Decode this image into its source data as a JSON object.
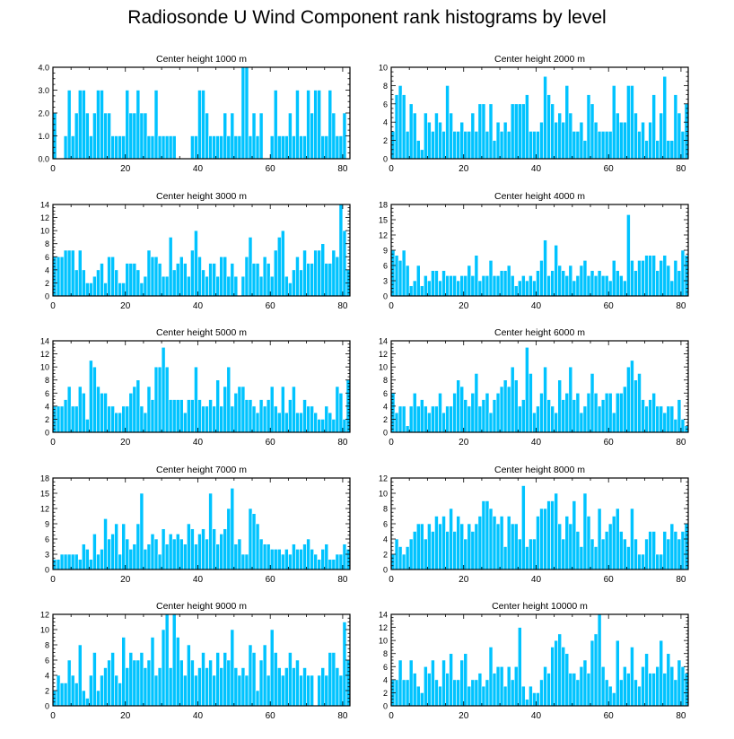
{
  "title": "Radiosonde U Wind Component rank histograms by level",
  "colors": {
    "bar": "#00c3ff",
    "bar_edge": "#ffffff",
    "axis": "#000000"
  },
  "chart_data": [
    {
      "type": "bar",
      "title": "Center height 1000 m",
      "xlim": [
        0,
        82
      ],
      "ylim": [
        0,
        4
      ],
      "xticks": [
        0,
        20,
        40,
        60,
        80
      ],
      "xtick_labels": [
        "0",
        "20",
        "40",
        "60",
        "80"
      ],
      "yticks": [
        0,
        1,
        2,
        3,
        4
      ],
      "ytick_labels": [
        "0.0",
        "1.0",
        "2.0",
        "3.0",
        "4.0"
      ],
      "values": [
        2,
        0,
        0,
        1,
        3,
        1,
        2,
        3,
        3,
        2,
        1,
        2,
        3,
        3,
        2,
        2,
        1,
        1,
        1,
        1,
        3,
        2,
        2,
        3,
        2,
        2,
        1,
        1,
        3,
        1,
        1,
        1,
        1,
        1,
        0,
        0,
        0,
        0,
        1,
        1,
        3,
        3,
        2,
        1,
        1,
        1,
        1,
        2,
        1,
        2,
        1,
        1,
        4,
        4,
        1,
        2,
        1,
        2,
        0,
        0,
        1,
        3,
        1,
        1,
        1,
        2,
        1,
        3,
        1,
        1,
        3,
        2,
        3,
        3,
        1,
        1,
        3,
        2,
        1,
        1,
        2,
        0
      ]
    },
    {
      "type": "bar",
      "title": "Center height 2000 m",
      "xlim": [
        0,
        82
      ],
      "ylim": [
        0,
        10
      ],
      "xticks": [
        0,
        20,
        40,
        60,
        80
      ],
      "xtick_labels": [
        "0",
        "20",
        "40",
        "60",
        "80"
      ],
      "yticks": [
        0,
        2,
        4,
        6,
        8,
        10
      ],
      "ytick_labels": [
        "0",
        "2",
        "4",
        "6",
        "8",
        "10"
      ],
      "values": [
        3,
        7,
        8,
        7,
        3,
        6,
        5,
        2,
        1,
        5,
        4,
        3,
        5,
        4,
        3,
        8,
        5,
        3,
        3,
        4,
        3,
        3,
        5,
        3,
        6,
        6,
        3,
        6,
        2,
        4,
        3,
        4,
        3,
        6,
        6,
        6,
        6,
        7,
        3,
        3,
        3,
        4,
        9,
        7,
        6,
        4,
        5,
        4,
        8,
        5,
        3,
        3,
        4,
        2,
        7,
        6,
        4,
        3,
        3,
        3,
        3,
        8,
        5,
        4,
        4,
        8,
        8,
        5,
        3,
        4,
        2,
        4,
        7,
        2,
        5,
        9,
        2,
        2,
        7,
        5,
        3,
        6
      ]
    },
    {
      "type": "bar",
      "title": "Center height 3000 m",
      "xlim": [
        0,
        82
      ],
      "ylim": [
        0,
        14
      ],
      "xticks": [
        0,
        20,
        40,
        60,
        80
      ],
      "xtick_labels": [
        "0",
        "20",
        "40",
        "60",
        "80"
      ],
      "yticks": [
        0,
        2,
        4,
        6,
        8,
        10,
        12,
        14
      ],
      "ytick_labels": [
        "0",
        "2",
        "4",
        "6",
        "8",
        "10",
        "12",
        "14"
      ],
      "values": [
        6,
        6,
        6,
        7,
        7,
        7,
        4,
        7,
        4,
        2,
        2,
        3,
        4,
        5,
        2,
        6,
        6,
        4,
        2,
        2,
        5,
        5,
        5,
        4,
        2,
        3,
        7,
        6,
        6,
        5,
        3,
        3,
        9,
        4,
        5,
        6,
        5,
        3,
        7,
        10,
        6,
        4,
        3,
        5,
        5,
        3,
        6,
        6,
        3,
        5,
        3,
        0,
        3,
        6,
        9,
        5,
        5,
        3,
        6,
        5,
        3,
        7,
        9,
        10,
        3,
        2,
        4,
        6,
        4,
        7,
        5,
        5,
        7,
        7,
        8,
        5,
        5,
        7,
        6,
        14,
        10,
        4
      ]
    },
    {
      "type": "bar",
      "title": "Center height 4000 m",
      "xlim": [
        0,
        82
      ],
      "ylim": [
        0,
        18
      ],
      "xticks": [
        0,
        20,
        40,
        60,
        80
      ],
      "xtick_labels": [
        "0",
        "20",
        "40",
        "60",
        "80"
      ],
      "yticks": [
        0,
        3,
        6,
        9,
        12,
        15,
        18
      ],
      "ytick_labels": [
        "0",
        "3",
        "6",
        "9",
        "12",
        "15",
        "18"
      ],
      "values": [
        9,
        8,
        7,
        9,
        6,
        2,
        3,
        6,
        2,
        4,
        3,
        5,
        5,
        3,
        5,
        4,
        4,
        4,
        3,
        4,
        4,
        6,
        4,
        8,
        3,
        4,
        4,
        7,
        4,
        4,
        5,
        5,
        6,
        4,
        2,
        3,
        4,
        3,
        4,
        3,
        5,
        7,
        11,
        4,
        5,
        10,
        6,
        5,
        4,
        6,
        3,
        4,
        6,
        7,
        4,
        5,
        4,
        5,
        4,
        4,
        3,
        7,
        5,
        4,
        3,
        16,
        7,
        5,
        7,
        7,
        8,
        8,
        8,
        5,
        7,
        8,
        6,
        3,
        7,
        5,
        9,
        8
      ]
    },
    {
      "type": "bar",
      "title": "Center height 5000 m",
      "xlim": [
        0,
        82
      ],
      "ylim": [
        0,
        14
      ],
      "xticks": [
        0,
        20,
        40,
        60,
        80
      ],
      "xtick_labels": [
        "0",
        "20",
        "40",
        "60",
        "80"
      ],
      "yticks": [
        0,
        2,
        4,
        6,
        8,
        10,
        12,
        14
      ],
      "ytick_labels": [
        "0",
        "2",
        "4",
        "6",
        "8",
        "10",
        "12",
        "14"
      ],
      "values": [
        4,
        4,
        4,
        5,
        7,
        4,
        4,
        7,
        6,
        2,
        11,
        10,
        7,
        6,
        6,
        4,
        4,
        3,
        3,
        4,
        4,
        6,
        7,
        8,
        4,
        3,
        7,
        5,
        10,
        10,
        13,
        10,
        5,
        5,
        5,
        5,
        3,
        5,
        5,
        10,
        5,
        4,
        4,
        5,
        4,
        8,
        4,
        7,
        10,
        4,
        6,
        7,
        7,
        5,
        5,
        4,
        3,
        5,
        4,
        5,
        7,
        4,
        3,
        7,
        3,
        5,
        7,
        3,
        3,
        5,
        4,
        4,
        3,
        2,
        2,
        4,
        3,
        2,
        7,
        6,
        2,
        8
      ]
    },
    {
      "type": "bar",
      "title": "Center height 6000 m",
      "xlim": [
        0,
        82
      ],
      "ylim": [
        0,
        14
      ],
      "xticks": [
        0,
        20,
        40,
        60,
        80
      ],
      "xtick_labels": [
        "0",
        "20",
        "40",
        "60",
        "80"
      ],
      "yticks": [
        0,
        2,
        4,
        6,
        8,
        10,
        12,
        14
      ],
      "ytick_labels": [
        "0",
        "2",
        "4",
        "6",
        "8",
        "10",
        "12",
        "14"
      ],
      "values": [
        6,
        3,
        4,
        4,
        1,
        4,
        6,
        4,
        5,
        4,
        3,
        4,
        4,
        6,
        3,
        4,
        4,
        6,
        8,
        7,
        5,
        4,
        6,
        9,
        4,
        5,
        6,
        3,
        5,
        6,
        7,
        8,
        7,
        10,
        8,
        4,
        5,
        13,
        9,
        3,
        4,
        6,
        10,
        5,
        4,
        3,
        8,
        5,
        6,
        10,
        5,
        6,
        3,
        4,
        6,
        9,
        6,
        4,
        5,
        6,
        6,
        3,
        6,
        6,
        7,
        10,
        11,
        8,
        9,
        5,
        4,
        5,
        6,
        4,
        4,
        3,
        4,
        4,
        2,
        5,
        2,
        1
      ]
    },
    {
      "type": "bar",
      "title": "Center height 7000 m",
      "xlim": [
        0,
        82
      ],
      "ylim": [
        0,
        18
      ],
      "xticks": [
        0,
        20,
        40,
        60,
        80
      ],
      "xtick_labels": [
        "0",
        "20",
        "40",
        "60",
        "80"
      ],
      "yticks": [
        0,
        3,
        6,
        9,
        12,
        15,
        18
      ],
      "ytick_labels": [
        "0",
        "3",
        "6",
        "9",
        "12",
        "15",
        "18"
      ],
      "values": [
        2,
        2,
        3,
        3,
        3,
        3,
        3,
        2,
        5,
        4,
        2,
        7,
        3,
        4,
        10,
        6,
        7,
        9,
        3,
        9,
        6,
        4,
        5,
        9,
        15,
        4,
        5,
        7,
        6,
        3,
        8,
        5,
        7,
        6,
        7,
        6,
        5,
        9,
        8,
        5,
        7,
        8,
        6,
        15,
        8,
        5,
        7,
        8,
        12,
        16,
        5,
        6,
        3,
        3,
        12,
        11,
        9,
        6,
        5,
        5,
        4,
        4,
        4,
        3,
        4,
        3,
        5,
        4,
        4,
        5,
        6,
        4,
        3,
        2,
        4,
        5,
        2,
        2,
        3,
        3,
        5,
        4
      ]
    },
    {
      "type": "bar",
      "title": "Center height 8000 m",
      "xlim": [
        0,
        82
      ],
      "ylim": [
        0,
        12
      ],
      "xticks": [
        0,
        20,
        40,
        60,
        80
      ],
      "xtick_labels": [
        "0",
        "20",
        "40",
        "60",
        "80"
      ],
      "yticks": [
        0,
        2,
        4,
        6,
        8,
        10,
        12
      ],
      "ytick_labels": [
        "0",
        "2",
        "4",
        "6",
        "8",
        "10",
        "12"
      ],
      "values": [
        2,
        4,
        3,
        2,
        3,
        4,
        5,
        6,
        6,
        4,
        6,
        5,
        7,
        6,
        7,
        5,
        8,
        5,
        7,
        6,
        4,
        6,
        5,
        6,
        7,
        9,
        9,
        8,
        7,
        6,
        7,
        3,
        7,
        6,
        6,
        4,
        11,
        3,
        4,
        4,
        7,
        8,
        8,
        9,
        9,
        10,
        6,
        4,
        7,
        6,
        9,
        5,
        3,
        10,
        7,
        4,
        3,
        8,
        4,
        5,
        6,
        7,
        8,
        5,
        4,
        3,
        8,
        4,
        2,
        2,
        4,
        5,
        5,
        2,
        2,
        5,
        4,
        6,
        5,
        4,
        5,
        6
      ]
    },
    {
      "type": "bar",
      "title": "Center height 9000 m",
      "xlim": [
        0,
        82
      ],
      "ylim": [
        0,
        12
      ],
      "xticks": [
        0,
        20,
        40,
        60,
        80
      ],
      "xtick_labels": [
        "0",
        "20",
        "40",
        "60",
        "80"
      ],
      "yticks": [
        0,
        2,
        4,
        6,
        8,
        10,
        12
      ],
      "ytick_labels": [
        "0",
        "2",
        "4",
        "6",
        "8",
        "10",
        "12"
      ],
      "values": [
        2,
        4,
        3,
        3,
        6,
        4,
        3,
        8,
        2,
        1,
        4,
        7,
        2,
        4,
        5,
        6,
        7,
        4,
        3,
        9,
        5,
        7,
        6,
        6,
        7,
        5,
        6,
        9,
        4,
        5,
        10,
        12,
        5,
        12,
        9,
        6,
        4,
        8,
        6,
        4,
        5,
        7,
        5,
        6,
        4,
        7,
        5,
        7,
        6,
        10,
        5,
        4,
        5,
        4,
        8,
        7,
        2,
        6,
        8,
        4,
        10,
        7,
        5,
        4,
        5,
        7,
        5,
        6,
        4,
        5,
        4,
        4,
        0,
        4,
        5,
        4,
        7,
        7,
        5,
        4,
        11,
        6
      ]
    },
    {
      "type": "bar",
      "title": "Center height 10000 m",
      "xlim": [
        0,
        82
      ],
      "ylim": [
        0,
        14
      ],
      "xticks": [
        0,
        20,
        40,
        60,
        80
      ],
      "xtick_labels": [
        "0",
        "20",
        "40",
        "60",
        "80"
      ],
      "yticks": [
        0,
        2,
        4,
        6,
        8,
        10,
        12,
        14
      ],
      "ytick_labels": [
        "0",
        "2",
        "4",
        "6",
        "8",
        "10",
        "12",
        "14"
      ],
      "values": [
        4,
        4,
        7,
        4,
        4,
        7,
        5,
        3,
        2,
        6,
        5,
        7,
        4,
        3,
        7,
        5,
        8,
        4,
        4,
        7,
        8,
        3,
        4,
        4,
        5,
        3,
        4,
        9,
        5,
        6,
        6,
        3,
        6,
        4,
        6,
        12,
        3,
        1,
        3,
        2,
        2,
        4,
        6,
        5,
        9,
        10,
        11,
        9,
        8,
        5,
        5,
        4,
        6,
        7,
        5,
        10,
        11,
        14,
        6,
        4,
        3,
        2,
        10,
        4,
        6,
        5,
        9,
        4,
        3,
        6,
        8,
        5,
        5,
        6,
        10,
        5,
        8,
        6,
        4,
        7,
        6,
        5
      ]
    }
  ]
}
